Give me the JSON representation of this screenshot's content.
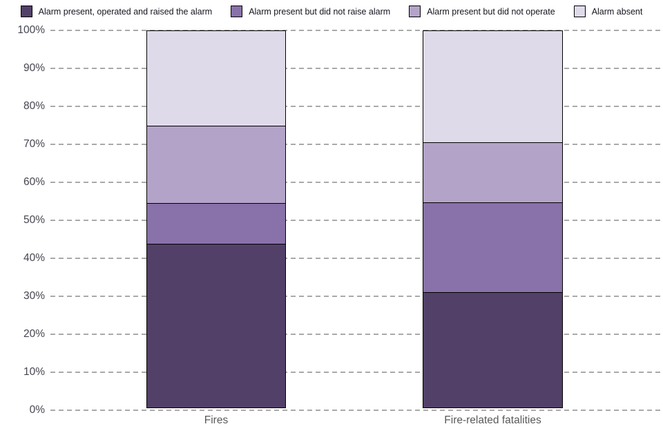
{
  "chart_data": {
    "type": "bar",
    "variant": "stacked-100-percent",
    "title": "",
    "xlabel": "",
    "ylabel": "",
    "unit": "%",
    "categories": [
      "Fires",
      "Fire-related fatalities"
    ],
    "series": [
      {
        "name": "Alarm present, operated and raised the alarm",
        "color": "#534069",
        "values": [
          43.3,
          30.5
        ]
      },
      {
        "name": "Alarm present but did not raise alarm",
        "color": "#8971A9",
        "values": [
          10.9,
          23.9
        ]
      },
      {
        "name": "Alarm present but did not operate",
        "color": "#B4A3C8",
        "values": [
          20.5,
          16.0
        ]
      },
      {
        "name": "Alarm absent",
        "color": "#DFDAEA",
        "values": [
          25.3,
          29.6
        ]
      }
    ],
    "y_axis": {
      "min": 0,
      "max": 100,
      "tick_step": 10,
      "tick_labels": [
        "0%",
        "10%",
        "20%",
        "30%",
        "40%",
        "50%",
        "60%",
        "70%",
        "80%",
        "90%",
        "100%"
      ]
    },
    "grid": "dashed-horizontal",
    "gridline_color": "#a9a9a9",
    "legend_position": "top",
    "segment_border_color": "#000000"
  }
}
